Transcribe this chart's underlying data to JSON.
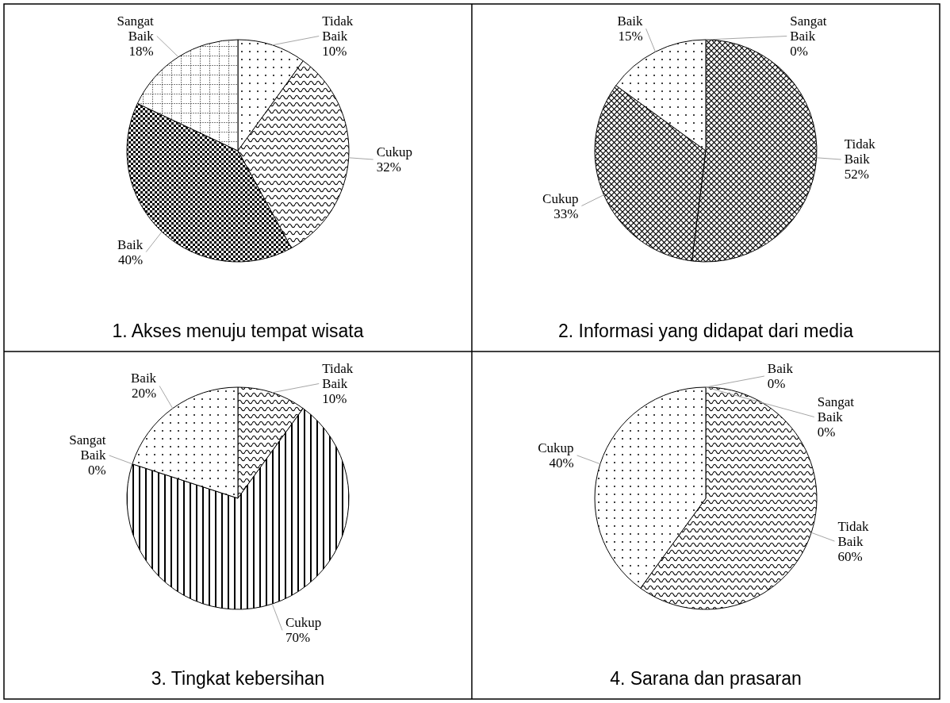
{
  "chart_data": [
    {
      "type": "pie",
      "title": "1. Akses menuju tempat wisata",
      "categories": [
        "Tidak Baik",
        "Cukup",
        "Baik",
        "Sangat Baik"
      ],
      "values": [
        10,
        32,
        40,
        18
      ],
      "value_labels": [
        "10%",
        "32%",
        "40%",
        "18%"
      ],
      "colors": [
        "#000000",
        "#000000",
        "#000000",
        "#000000"
      ]
    },
    {
      "type": "pie",
      "title": "2. Informasi yang didapat dari media",
      "categories": [
        "Sangat Baik",
        "Tidak Baik",
        "Cukup",
        "Baik"
      ],
      "values": [
        0,
        52,
        33,
        15
      ],
      "value_labels": [
        "0%",
        "52%",
        "33%",
        "15%"
      ],
      "colors": [
        "#000000",
        "#000000",
        "#000000",
        "#000000"
      ]
    },
    {
      "type": "pie",
      "title": "3. Tingkat kebersihan",
      "categories": [
        "Tidak Baik",
        "Cukup",
        "Sangat Baik",
        "Baik"
      ],
      "values": [
        10,
        70,
        0,
        20
      ],
      "value_labels": [
        "10%",
        "70%",
        "0%",
        "20%"
      ],
      "colors": [
        "#000000",
        "#000000",
        "#000000",
        "#000000"
      ]
    },
    {
      "type": "pie",
      "title": "4. Sarana dan prasaran",
      "categories": [
        "Baik",
        "Sangat Baik",
        "Tidak Baik",
        "Cukup"
      ],
      "values": [
        0,
        0,
        60,
        40
      ],
      "value_labels": [
        "0%",
        "0%",
        "60%",
        "40%"
      ],
      "colors": [
        "#000000",
        "#000000",
        "#000000",
        "#000000"
      ]
    }
  ]
}
